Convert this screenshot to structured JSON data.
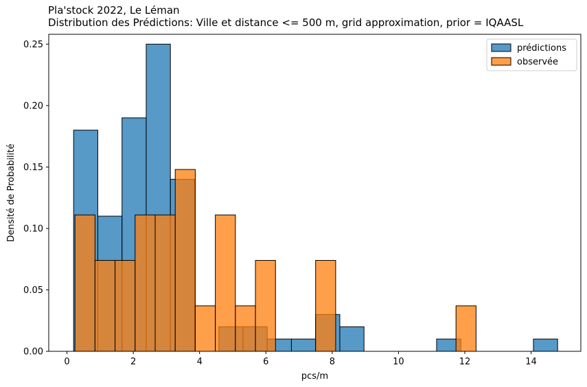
{
  "chart_data": {
    "type": "bar",
    "title": "Pla'stock 2022, Le Léman",
    "subtitle": "Distribution des Prédictions: Ville et distance <= 500 m, grid approximation, prior = IQAASL",
    "xlabel": "pcs/m",
    "ylabel": "Densité de Probabilité",
    "xlim": [
      -0.55,
      15.5
    ],
    "ylim": [
      0,
      0.258
    ],
    "xticks": [
      0,
      2,
      4,
      6,
      8,
      10,
      12,
      14
    ],
    "yticks": [
      0.0,
      0.05,
      0.1,
      0.15,
      0.2,
      0.25
    ],
    "xtick_labels": [
      "0",
      "2",
      "4",
      "6",
      "8",
      "10",
      "12",
      "14"
    ],
    "ytick_labels": [
      "0.00",
      "0.05",
      "0.10",
      "0.15",
      "0.20",
      "0.25"
    ],
    "grid": false,
    "legend_position": "top-right",
    "series": [
      {
        "name": "prédictions",
        "color": "#1f77b4",
        "bins": [
          {
            "x0": 0.2,
            "x1": 0.93,
            "value": 0.18
          },
          {
            "x0": 0.93,
            "x1": 1.66,
            "value": 0.11
          },
          {
            "x0": 1.66,
            "x1": 2.39,
            "value": 0.19
          },
          {
            "x0": 2.39,
            "x1": 3.12,
            "value": 0.25
          },
          {
            "x0": 3.12,
            "x1": 3.85,
            "value": 0.14
          },
          {
            "x0": 3.85,
            "x1": 4.58,
            "value": 0.0
          },
          {
            "x0": 4.58,
            "x1": 5.31,
            "value": 0.02
          },
          {
            "x0": 5.31,
            "x1": 6.04,
            "value": 0.02
          },
          {
            "x0": 6.04,
            "x1": 6.77,
            "value": 0.01
          },
          {
            "x0": 6.77,
            "x1": 7.5,
            "value": 0.01
          },
          {
            "x0": 7.5,
            "x1": 8.23,
            "value": 0.03
          },
          {
            "x0": 8.23,
            "x1": 8.96,
            "value": 0.02
          },
          {
            "x0": 8.96,
            "x1": 9.69,
            "value": 0.0
          },
          {
            "x0": 9.69,
            "x1": 10.42,
            "value": 0.0
          },
          {
            "x0": 10.42,
            "x1": 11.15,
            "value": 0.0
          },
          {
            "x0": 11.15,
            "x1": 11.88,
            "value": 0.01
          },
          {
            "x0": 11.88,
            "x1": 12.61,
            "value": 0.0
          },
          {
            "x0": 12.61,
            "x1": 13.34,
            "value": 0.0
          },
          {
            "x0": 13.34,
            "x1": 14.07,
            "value": 0.0
          },
          {
            "x0": 14.07,
            "x1": 14.8,
            "value": 0.01
          }
        ]
      },
      {
        "name": "observée",
        "color": "#ff7f0e",
        "bins": [
          {
            "x0": 0.24,
            "x1": 0.845,
            "value": 0.111
          },
          {
            "x0": 0.845,
            "x1": 1.45,
            "value": 0.074
          },
          {
            "x0": 1.45,
            "x1": 2.055,
            "value": 0.074
          },
          {
            "x0": 2.055,
            "x1": 2.66,
            "value": 0.111
          },
          {
            "x0": 2.66,
            "x1": 3.265,
            "value": 0.111
          },
          {
            "x0": 3.265,
            "x1": 3.87,
            "value": 0.148
          },
          {
            "x0": 3.87,
            "x1": 4.475,
            "value": 0.037
          },
          {
            "x0": 4.475,
            "x1": 5.08,
            "value": 0.111
          },
          {
            "x0": 5.08,
            "x1": 5.685,
            "value": 0.037
          },
          {
            "x0": 5.685,
            "x1": 6.29,
            "value": 0.074
          },
          {
            "x0": 6.29,
            "x1": 6.895,
            "value": 0.0
          },
          {
            "x0": 6.895,
            "x1": 7.5,
            "value": 0.0
          },
          {
            "x0": 7.5,
            "x1": 8.105,
            "value": 0.074
          },
          {
            "x0": 8.105,
            "x1": 8.71,
            "value": 0.0
          },
          {
            "x0": 8.71,
            "x1": 9.315,
            "value": 0.0
          },
          {
            "x0": 9.315,
            "x1": 9.92,
            "value": 0.0
          },
          {
            "x0": 9.92,
            "x1": 10.525,
            "value": 0.0
          },
          {
            "x0": 10.525,
            "x1": 11.13,
            "value": 0.0
          },
          {
            "x0": 11.13,
            "x1": 11.735,
            "value": 0.0
          },
          {
            "x0": 11.735,
            "x1": 12.34,
            "value": 0.037
          }
        ]
      }
    ]
  }
}
